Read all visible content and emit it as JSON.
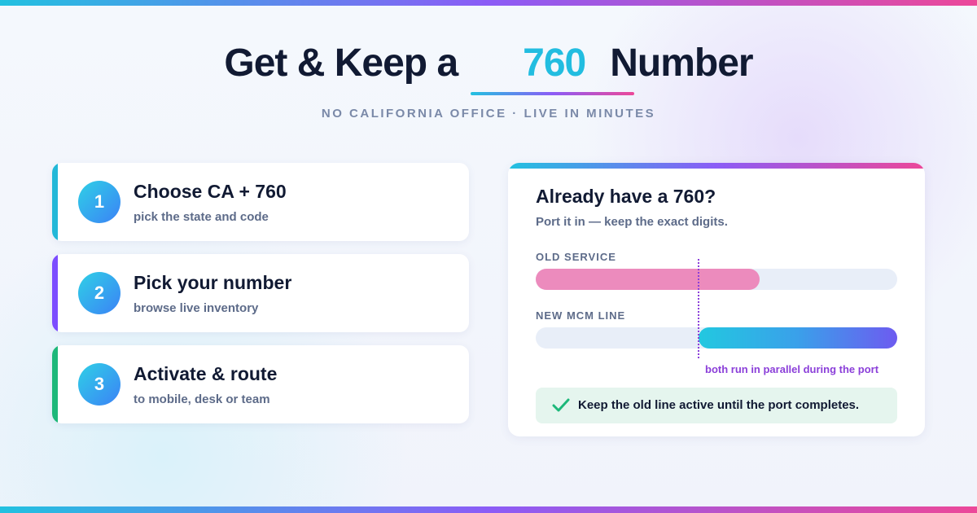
{
  "header": {
    "title_before": "Get & Keep a",
    "title_highlight": "760",
    "title_after": "Number",
    "subtitle": "NO CALIFORNIA OFFICE · LIVE IN MINUTES"
  },
  "steps": [
    {
      "number": "1",
      "title": "Choose CA + 760",
      "description": "pick the state and code"
    },
    {
      "number": "2",
      "title": "Pick your number",
      "description": "browse live inventory"
    },
    {
      "number": "3",
      "title": "Activate & route",
      "description": "to mobile, desk or team"
    }
  ],
  "port_card": {
    "title": "Already have a 760?",
    "subtitle": "Port it in — keep the exact digits.",
    "old_label": "OLD SERVICE",
    "new_label": "NEW MCM LINE",
    "parallel_note": "both run in parallel during the port",
    "check_note": "Keep the old line active until the port completes."
  }
}
